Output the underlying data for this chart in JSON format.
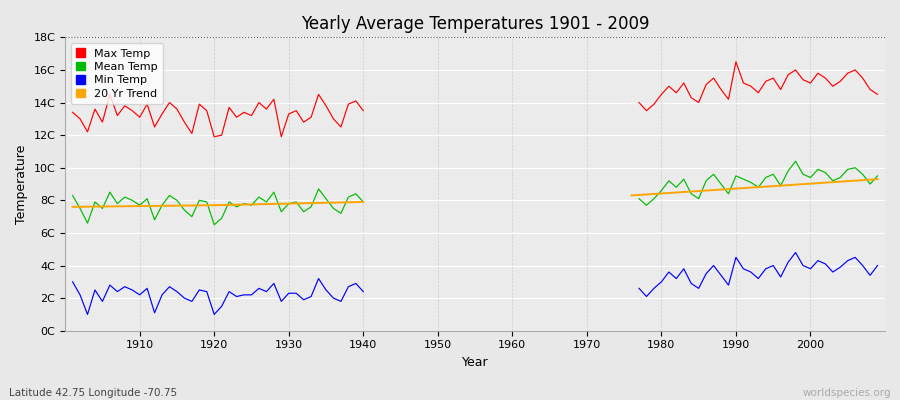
{
  "title": "Yearly Average Temperatures 1901 - 2009",
  "xlabel": "Year",
  "ylabel": "Temperature",
  "footer_left": "Latitude 42.75 Longitude -70.75",
  "footer_right": "worldspecies.org",
  "legend_labels": [
    "Max Temp",
    "Mean Temp",
    "Min Temp",
    "20 Yr Trend"
  ],
  "legend_colors": [
    "#ff0000",
    "#00bb00",
    "#0000ff",
    "#ffa500"
  ],
  "bg_color": "#f0f0f0",
  "plot_bg_color": "#ececec",
  "ylim": [
    0,
    18
  ],
  "ytick_labels": [
    "0C",
    "2C",
    "4C",
    "6C",
    "8C",
    "10C",
    "12C",
    "14C",
    "16C",
    "18C"
  ],
  "years": [
    1901,
    1902,
    1903,
    1904,
    1905,
    1906,
    1907,
    1908,
    1909,
    1910,
    1911,
    1912,
    1913,
    1914,
    1915,
    1916,
    1917,
    1918,
    1919,
    1920,
    1921,
    1922,
    1923,
    1924,
    1925,
    1926,
    1927,
    1928,
    1929,
    1930,
    1931,
    1932,
    1933,
    1934,
    1935,
    1936,
    1937,
    1938,
    1939,
    1940,
    1941,
    1942,
    1943,
    1944,
    1945,
    1946,
    1947,
    1948,
    1949,
    1950,
    1951,
    1952,
    1953,
    1954,
    1955,
    1956,
    1957,
    1958,
    1959,
    1960,
    1961,
    1962,
    1963,
    1964,
    1965,
    1966,
    1967,
    1968,
    1969,
    1970,
    1971,
    1972,
    1973,
    1974,
    1975,
    1976,
    1977,
    1978,
    1979,
    1980,
    1981,
    1982,
    1983,
    1984,
    1985,
    1986,
    1987,
    1988,
    1989,
    1990,
    1991,
    1992,
    1993,
    1994,
    1995,
    1996,
    1997,
    1998,
    1999,
    2000,
    2001,
    2002,
    2003,
    2004,
    2005,
    2006,
    2007,
    2008,
    2009
  ],
  "max_temp": [
    13.4,
    13.0,
    12.2,
    13.6,
    12.8,
    14.5,
    13.2,
    13.8,
    13.5,
    13.1,
    13.9,
    12.5,
    13.3,
    14.0,
    13.6,
    12.8,
    12.1,
    13.9,
    13.5,
    11.9,
    12.0,
    13.7,
    13.1,
    13.4,
    13.2,
    14.0,
    13.6,
    14.2,
    11.9,
    13.3,
    13.5,
    12.8,
    13.1,
    14.5,
    13.8,
    13.0,
    12.5,
    13.9,
    14.1,
    13.5,
    null,
    null,
    null,
    null,
    null,
    null,
    null,
    null,
    null,
    null,
    null,
    null,
    null,
    null,
    null,
    null,
    null,
    null,
    null,
    null,
    null,
    null,
    null,
    null,
    null,
    null,
    null,
    null,
    null,
    null,
    null,
    null,
    null,
    null,
    null,
    null,
    14.0,
    13.5,
    13.9,
    14.5,
    15.0,
    14.6,
    15.2,
    14.3,
    14.0,
    15.1,
    15.5,
    14.8,
    14.2,
    16.5,
    15.2,
    15.0,
    14.6,
    15.3,
    15.5,
    14.8,
    15.7,
    16.0,
    15.4,
    15.2,
    15.8,
    15.5,
    15.0,
    15.3,
    15.8,
    16.0,
    15.5,
    14.8,
    14.5
  ],
  "mean_temp": [
    8.3,
    7.5,
    6.6,
    7.9,
    7.5,
    8.5,
    7.8,
    8.2,
    8.0,
    7.7,
    8.1,
    6.8,
    7.7,
    8.3,
    8.0,
    7.4,
    7.0,
    8.0,
    7.9,
    6.5,
    6.9,
    7.9,
    7.6,
    7.8,
    7.7,
    8.2,
    7.9,
    8.5,
    7.3,
    7.8,
    7.9,
    7.3,
    7.6,
    8.7,
    8.1,
    7.5,
    7.2,
    8.2,
    8.4,
    7.9,
    null,
    null,
    null,
    null,
    null,
    null,
    null,
    null,
    null,
    null,
    null,
    null,
    null,
    null,
    null,
    null,
    null,
    null,
    null,
    null,
    null,
    null,
    null,
    null,
    null,
    null,
    null,
    null,
    null,
    null,
    null,
    null,
    null,
    null,
    null,
    null,
    8.1,
    7.7,
    8.1,
    8.6,
    9.2,
    8.8,
    9.3,
    8.4,
    8.1,
    9.2,
    9.6,
    9.0,
    8.4,
    9.5,
    9.3,
    9.1,
    8.8,
    9.4,
    9.6,
    8.9,
    9.8,
    10.4,
    9.6,
    9.4,
    9.9,
    9.7,
    9.2,
    9.4,
    9.9,
    10.0,
    9.6,
    9.0,
    9.5
  ],
  "min_temp": [
    3.0,
    2.2,
    1.0,
    2.5,
    1.8,
    2.8,
    2.4,
    2.7,
    2.5,
    2.2,
    2.6,
    1.1,
    2.2,
    2.7,
    2.4,
    2.0,
    1.8,
    2.5,
    2.4,
    1.0,
    1.5,
    2.4,
    2.1,
    2.2,
    2.2,
    2.6,
    2.4,
    2.9,
    1.8,
    2.3,
    2.3,
    1.9,
    2.1,
    3.2,
    2.5,
    2.0,
    1.8,
    2.7,
    2.9,
    2.4,
    null,
    null,
    null,
    null,
    null,
    null,
    null,
    null,
    null,
    null,
    null,
    null,
    null,
    null,
    null,
    null,
    null,
    null,
    null,
    null,
    null,
    null,
    null,
    null,
    null,
    null,
    null,
    null,
    null,
    null,
    null,
    null,
    null,
    null,
    null,
    null,
    2.6,
    2.1,
    2.6,
    3.0,
    3.6,
    3.2,
    3.8,
    2.9,
    2.6,
    3.5,
    4.0,
    3.4,
    2.8,
    4.5,
    3.8,
    3.6,
    3.2,
    3.8,
    4.0,
    3.3,
    4.2,
    4.8,
    4.0,
    3.8,
    4.3,
    4.1,
    3.6,
    3.9,
    4.3,
    4.5,
    4.0,
    3.4,
    4.0
  ],
  "trend_segments": [
    {
      "x": [
        1901,
        1920
      ],
      "y": [
        7.6,
        7.7
      ]
    },
    {
      "x": [
        1920,
        1940
      ],
      "y": [
        7.7,
        7.9
      ]
    },
    {
      "x": [
        1976,
        1996
      ],
      "y": [
        8.3,
        8.9
      ]
    },
    {
      "x": [
        1996,
        2009
      ],
      "y": [
        8.9,
        9.3
      ]
    }
  ]
}
